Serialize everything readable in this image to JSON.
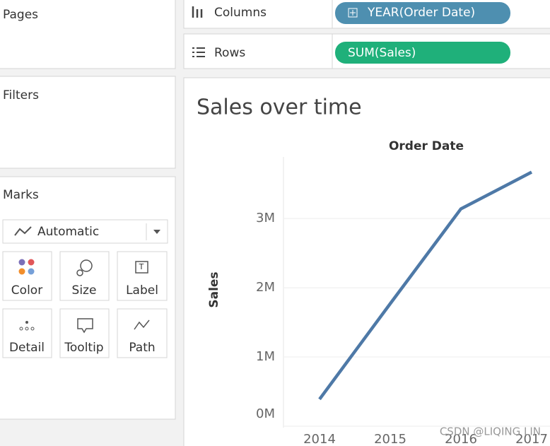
{
  "sidebar": {
    "pages": "Pages",
    "filters": "Filters",
    "marks": "Marks",
    "mark_type": "Automatic",
    "buttons": [
      "Color",
      "Size",
      "Label",
      "Detail",
      "Tooltip",
      "Path"
    ]
  },
  "shelves": {
    "columns": {
      "label": "Columns",
      "pill": "YEAR(Order Date)"
    },
    "rows": {
      "label": "Rows",
      "pill": "SUM(Sales)"
    }
  },
  "watermark": "CSDN @LIQING LIN",
  "chart_data": {
    "type": "line",
    "title": "Sales over time",
    "x_label": "Order Date",
    "y_label": "Sales",
    "categories": [
      "2014",
      "2015",
      "2016",
      "2017"
    ],
    "values": [
      390000,
      1770000,
      3140000,
      3670000
    ],
    "color": "#4e79a7",
    "ylim": [
      0,
      3890000
    ],
    "yticks": [
      {
        "value": 0,
        "label": "0M"
      },
      {
        "value": 1000000,
        "label": "1M"
      },
      {
        "value": 2000000,
        "label": "2M"
      },
      {
        "value": 3000000,
        "label": "3M"
      }
    ],
    "grid": true
  }
}
